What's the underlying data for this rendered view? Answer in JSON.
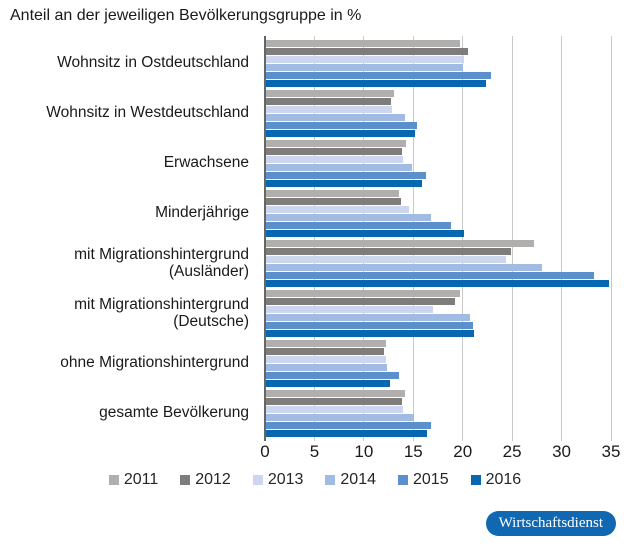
{
  "title": "Anteil an der jeweiligen Bevölkerungsgruppe in %",
  "chart_data": {
    "type": "bar",
    "orientation": "horizontal",
    "title": "Anteil an der jeweiligen Bevölkerungsgruppe in %",
    "xlabel": "",
    "ylabel": "",
    "xlim": [
      0,
      35
    ],
    "xticks": [
      0,
      5,
      10,
      15,
      20,
      25,
      30,
      35
    ],
    "grid": true,
    "legend_position": "bottom",
    "categories": [
      "Wohnsitz in Ostdeutschland",
      "Wohnsitz in Westdeutschland",
      "Erwachsene",
      "Minderjährige",
      "mit Migrationshintergrund (Ausländer)",
      "mit Migrationshintergrund (Deutsche)",
      "ohne Migrationshintergrund",
      "gesamte Bevölkerung"
    ],
    "series": [
      {
        "name": "2011",
        "color": "#b0afad",
        "values": [
          19.7,
          13.0,
          14.3,
          13.6,
          27.2,
          19.7,
          12.2,
          14.2
        ]
      },
      {
        "name": "2012",
        "color": "#7e7d7b",
        "values": [
          20.5,
          12.7,
          13.9,
          13.8,
          24.9,
          19.2,
          12.0,
          13.9
        ]
      },
      {
        "name": "2013",
        "color": "#ccd6ee",
        "values": [
          20.1,
          12.8,
          14.0,
          14.6,
          24.4,
          17.0,
          12.2,
          14.0
        ]
      },
      {
        "name": "2014",
        "color": "#a2bbe3",
        "values": [
          20.0,
          14.2,
          14.9,
          16.8,
          28.0,
          20.7,
          12.3,
          15.1
        ]
      },
      {
        "name": "2015",
        "color": "#5b90cd",
        "values": [
          22.9,
          15.4,
          16.3,
          18.8,
          33.3,
          21.0,
          13.6,
          16.8
        ]
      },
      {
        "name": "2016",
        "color": "#0768b1",
        "values": [
          22.4,
          15.2,
          15.9,
          20.1,
          34.8,
          21.1,
          12.6,
          16.4
        ]
      }
    ],
    "gridline_color": "#c9c9c9",
    "zero_axis_color": "#666663"
  },
  "footer": {
    "badge_label": "Wirtschaftsdienst",
    "badge_color": "#0f68b1"
  }
}
